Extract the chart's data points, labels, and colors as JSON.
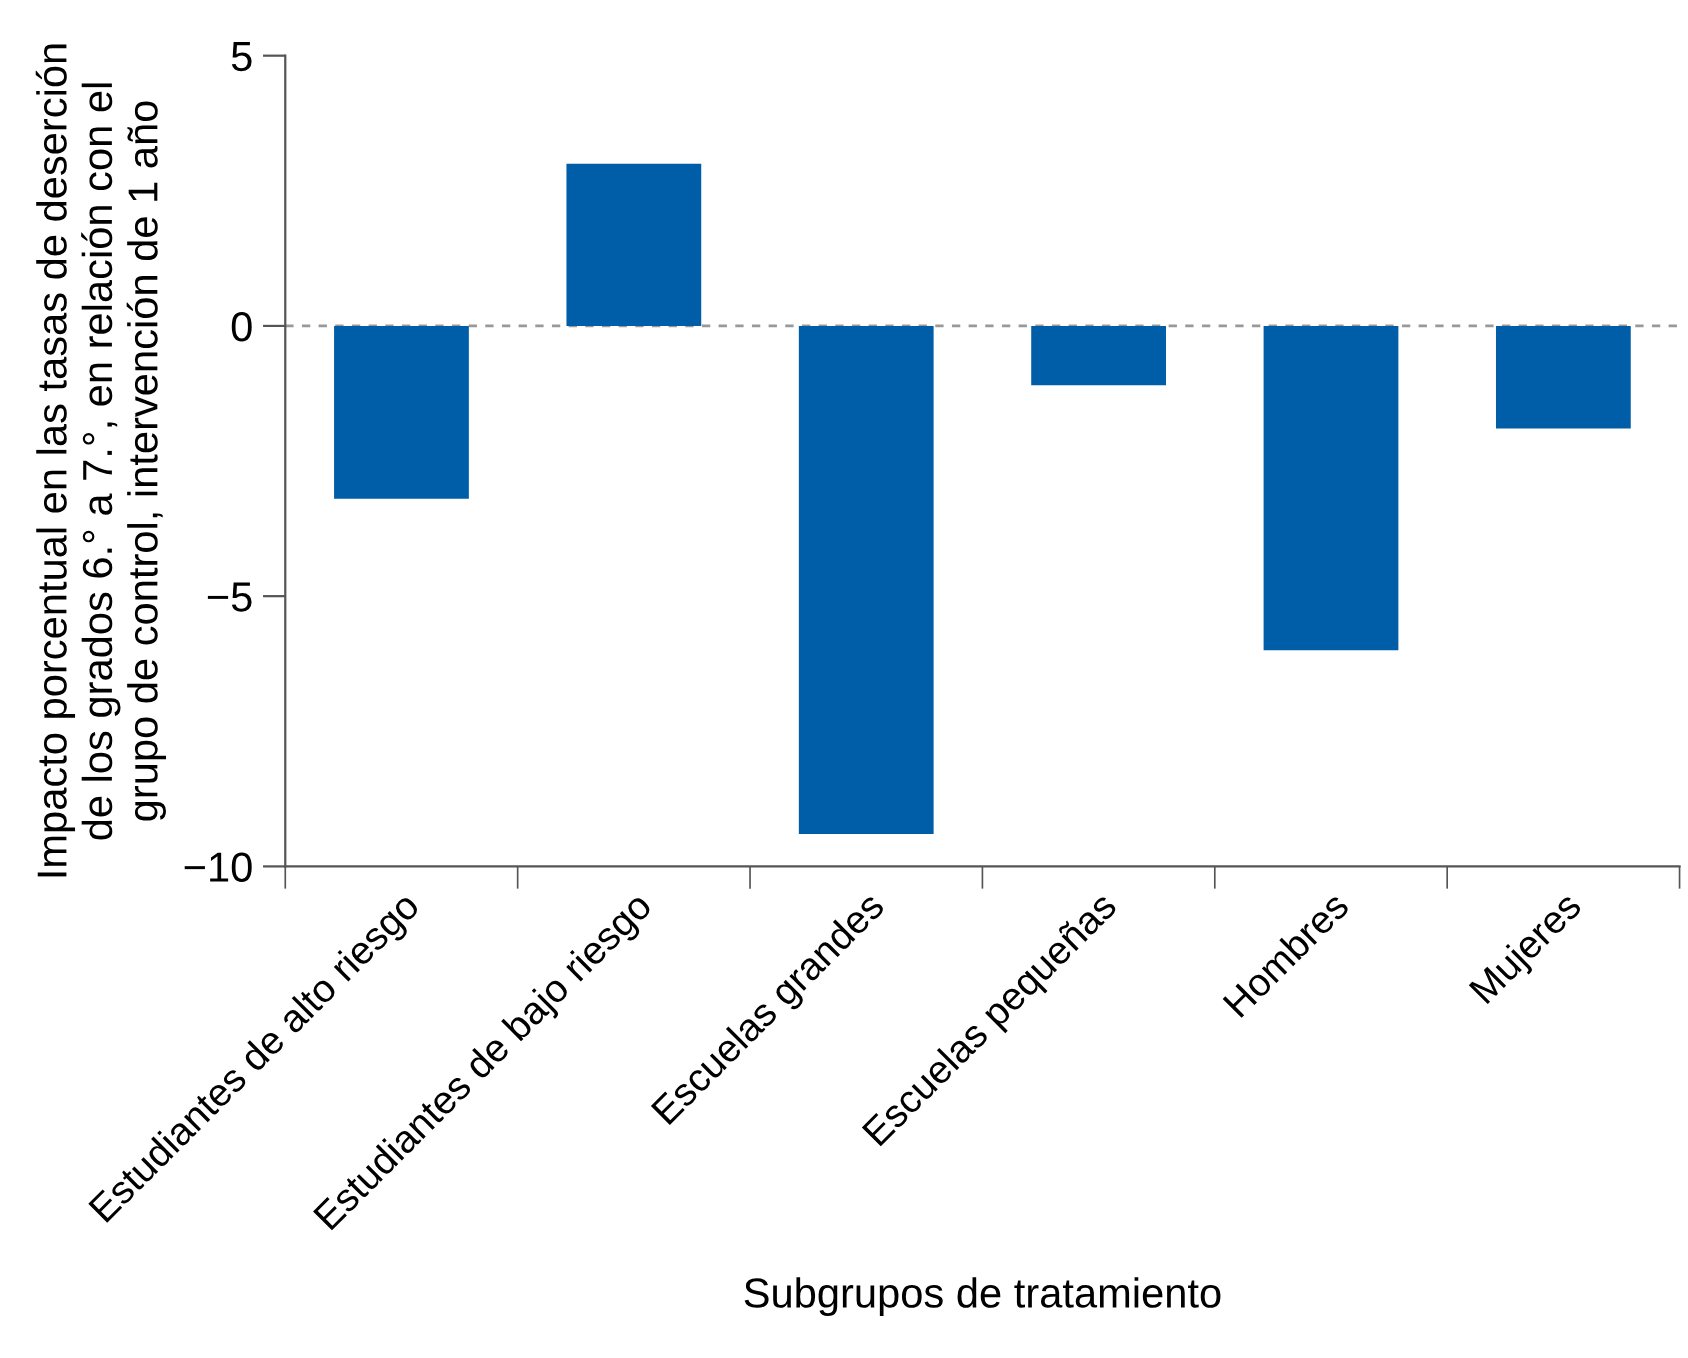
{
  "chart_data": {
    "type": "bar",
    "xlabel": "Subgrupos de tratamiento",
    "ylabel": "Impacto porcentual en las tasas de deserción\nde los grados 6.° a 7.°, en relación con el\ngrupo de control, intervención de 1 año",
    "categories": [
      "Estudiantes de alto riesgo",
      "Estudiantes de bajo riesgo",
      "Escuelas grandes",
      "Escuelas pequeñas",
      "Hombres",
      "Mujeres"
    ],
    "values": [
      -3.2,
      3.0,
      -9.4,
      -1.1,
      -6.0,
      -1.9
    ],
    "color": "#005ea8",
    "ylim": [
      -10,
      5
    ],
    "yticks": [
      {
        "value": -10,
        "label": "−10"
      },
      {
        "value": -5,
        "label": "−5"
      },
      0,
      5
    ],
    "ref_lines": [
      {
        "axis": "y",
        "value": 0,
        "color": "#999999",
        "line_style": "dashed"
      }
    ],
    "grid": false,
    "legend": false
  }
}
